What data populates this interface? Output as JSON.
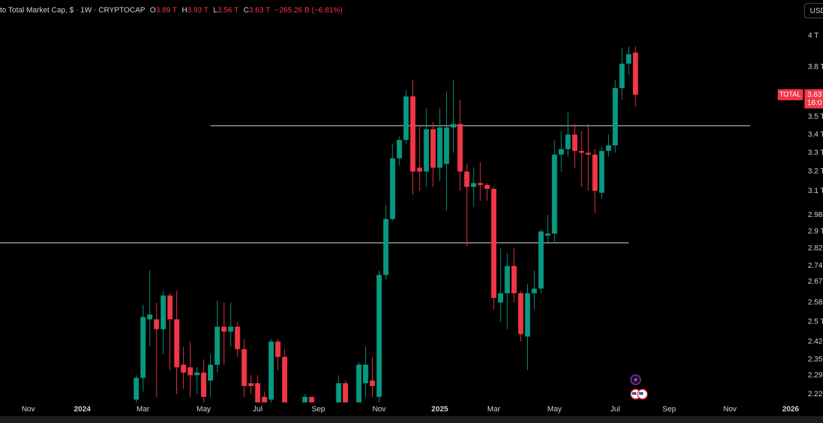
{
  "chart_data": {
    "type": "candlestick",
    "title": "to Total Market Cap, $ · 1W · CRYPTOCAP",
    "ohlc_legend": [
      {
        "key": "O",
        "value": "3.89 T"
      },
      {
        "key": "H",
        "value": "3.93 T"
      },
      {
        "key": "L",
        "value": "3.56 T"
      },
      {
        "key": "C",
        "value": "3.63 T"
      }
    ],
    "change": "−265.26 B (−6.81%)",
    "currency_button": "USD",
    "price_label_name": "TOTAL",
    "countdown": "16:0",
    "up_color": "#089981",
    "down_color": "#f23645",
    "log_scale": true,
    "grid": false,
    "x": [
      8,
      9,
      10,
      11,
      12,
      13,
      14,
      15,
      16,
      17,
      18,
      19,
      20,
      21,
      22,
      23,
      24,
      25,
      26,
      27,
      28,
      29,
      30,
      33,
      34,
      38,
      39,
      41,
      42,
      43,
      44,
      45,
      46,
      47,
      48,
      49,
      50,
      51,
      52,
      53,
      54,
      55,
      56,
      57,
      58,
      59,
      60,
      61,
      62,
      63,
      64,
      65,
      66,
      67,
      68,
      69,
      70,
      71,
      72,
      73,
      74,
      75,
      76,
      77,
      78,
      79,
      80,
      81,
      82
    ],
    "open": [
      2.2,
      2.28,
      2.51,
      2.51,
      2.47,
      2.61,
      2.51,
      2.33,
      2.32,
      2.29,
      2.3,
      2.27,
      2.33,
      2.48,
      2.46,
      2.48,
      2.39,
      2.26,
      2.26,
      2.21,
      2.2,
      2.42,
      2.36,
      2.19,
      2.21,
      2.19,
      2.26,
      2.19,
      2.26,
      2.27,
      2.21,
      2.7,
      2.96,
      3.27,
      3.37,
      3.62,
      3.22,
      3.2,
      3.43,
      3.22,
      3.24,
      3.44,
      3.46,
      3.2,
      3.12,
      3.14,
      3.13,
      3.11,
      2.58,
      2.62,
      2.74,
      2.62,
      2.44,
      2.62,
      2.64,
      2.88,
      2.89,
      3.29,
      3.32,
      3.4,
      3.31,
      3.3,
      3.29,
      3.09,
      3.31,
      3.34,
      3.67,
      3.82,
      3.89
    ],
    "high": [
      2.29,
      2.57,
      2.72,
      2.58,
      2.63,
      2.62,
      2.63,
      2.4,
      2.42,
      2.32,
      2.35,
      2.37,
      2.59,
      2.58,
      2.58,
      2.5,
      2.43,
      2.29,
      2.29,
      2.23,
      2.43,
      2.43,
      2.39,
      2.22,
      2.21,
      2.29,
      2.27,
      2.34,
      2.4,
      2.36,
      2.72,
      3.03,
      3.35,
      3.39,
      3.66,
      3.72,
      3.45,
      3.55,
      3.47,
      3.55,
      3.65,
      3.72,
      3.6,
      3.24,
      3.22,
      3.25,
      3.14,
      3.12,
      2.82,
      2.8,
      2.82,
      2.63,
      2.66,
      2.72,
      2.91,
      2.98,
      3.37,
      3.42,
      3.53,
      3.46,
      3.42,
      3.46,
      3.32,
      3.33,
      3.4,
      3.72,
      3.92,
      3.93,
      3.93
    ],
    "low": [
      2.19,
      2.23,
      2.4,
      2.21,
      2.37,
      2.31,
      2.22,
      2.24,
      2.21,
      2.22,
      2.19,
      2.21,
      2.3,
      2.33,
      2.4,
      2.36,
      2.21,
      2.22,
      2.19,
      2.19,
      2.19,
      2.31,
      2.19,
      2.19,
      2.19,
      2.19,
      2.19,
      2.19,
      2.21,
      2.21,
      2.19,
      2.68,
      2.95,
      3.23,
      3.35,
      3.08,
      3.1,
      3.12,
      3.12,
      3.15,
      3.0,
      3.3,
      3.1,
      2.83,
      3.02,
      3.05,
      3.05,
      2.55,
      2.5,
      2.47,
      2.58,
      2.42,
      2.31,
      2.55,
      2.62,
      2.84,
      2.85,
      3.2,
      3.28,
      3.22,
      3.12,
      3.1,
      2.99,
      3.06,
      3.28,
      3.3,
      3.6,
      3.75,
      3.56
    ],
    "close": [
      2.28,
      2.52,
      2.53,
      2.47,
      2.61,
      2.51,
      2.32,
      2.3,
      2.29,
      2.3,
      2.21,
      2.33,
      2.48,
      2.46,
      2.48,
      2.39,
      2.25,
      2.25,
      2.19,
      2.19,
      2.42,
      2.36,
      2.19,
      2.21,
      2.19,
      2.26,
      2.19,
      2.33,
      2.33,
      2.25,
      2.7,
      2.96,
      3.27,
      3.37,
      3.62,
      3.2,
      3.2,
      3.43,
      3.22,
      3.44,
      3.44,
      3.46,
      3.2,
      3.12,
      3.14,
      3.13,
      3.11,
      2.6,
      2.62,
      2.74,
      2.62,
      2.45,
      2.62,
      2.64,
      2.9,
      2.89,
      3.29,
      3.32,
      3.4,
      3.31,
      3.3,
      3.29,
      3.1,
      3.31,
      3.34,
      3.67,
      3.82,
      3.88,
      3.63
    ],
    "xlim": [
      -12.2,
      109.8
    ],
    "xticks": [
      {
        "value": -8,
        "label": "Nov"
      },
      {
        "value": 0,
        "label": "2024"
      },
      {
        "value": 9,
        "label": "Mar"
      },
      {
        "value": 18,
        "label": "May"
      },
      {
        "value": 26,
        "label": "Jul"
      },
      {
        "value": 35,
        "label": "Sep"
      },
      {
        "value": 44,
        "label": "Nov"
      },
      {
        "value": 53,
        "label": "2025"
      },
      {
        "value": 61,
        "label": "Mar"
      },
      {
        "value": 70,
        "label": "May"
      },
      {
        "value": 79,
        "label": "Jul"
      },
      {
        "value": 87,
        "label": "Sep"
      },
      {
        "value": 96,
        "label": "Nov"
      },
      {
        "value": 105,
        "label": "2026"
      }
    ],
    "ylim": [
      2.19,
      4.1
    ],
    "yticks": [
      {
        "value": 4,
        "label": "4 T"
      },
      {
        "value": 3.8,
        "label": "3.8 T"
      },
      {
        "value": 3.5,
        "label": "3.5 T"
      },
      {
        "value": 3.4,
        "label": "3.4 T"
      },
      {
        "value": 3.3,
        "label": "3.3 T"
      },
      {
        "value": 3.2,
        "label": "3.2 T"
      },
      {
        "value": 3.1,
        "label": "3.1 T"
      },
      2.98,
      {
        "value": 2.9,
        "label": "2.9 T"
      },
      2.82,
      2.74,
      2.67,
      2.58,
      {
        "value": 2.5,
        "label": "2.5 T"
      },
      2.42,
      2.35,
      2.29,
      2.22
    ],
    "hlines": [
      {
        "value": 3.45,
        "from": 19,
        "to": 99,
        "color": "#cfcfcf"
      },
      {
        "value": 2.846,
        "from": -12.2,
        "to": 81,
        "color": "#cfcfcf"
      }
    ]
  }
}
